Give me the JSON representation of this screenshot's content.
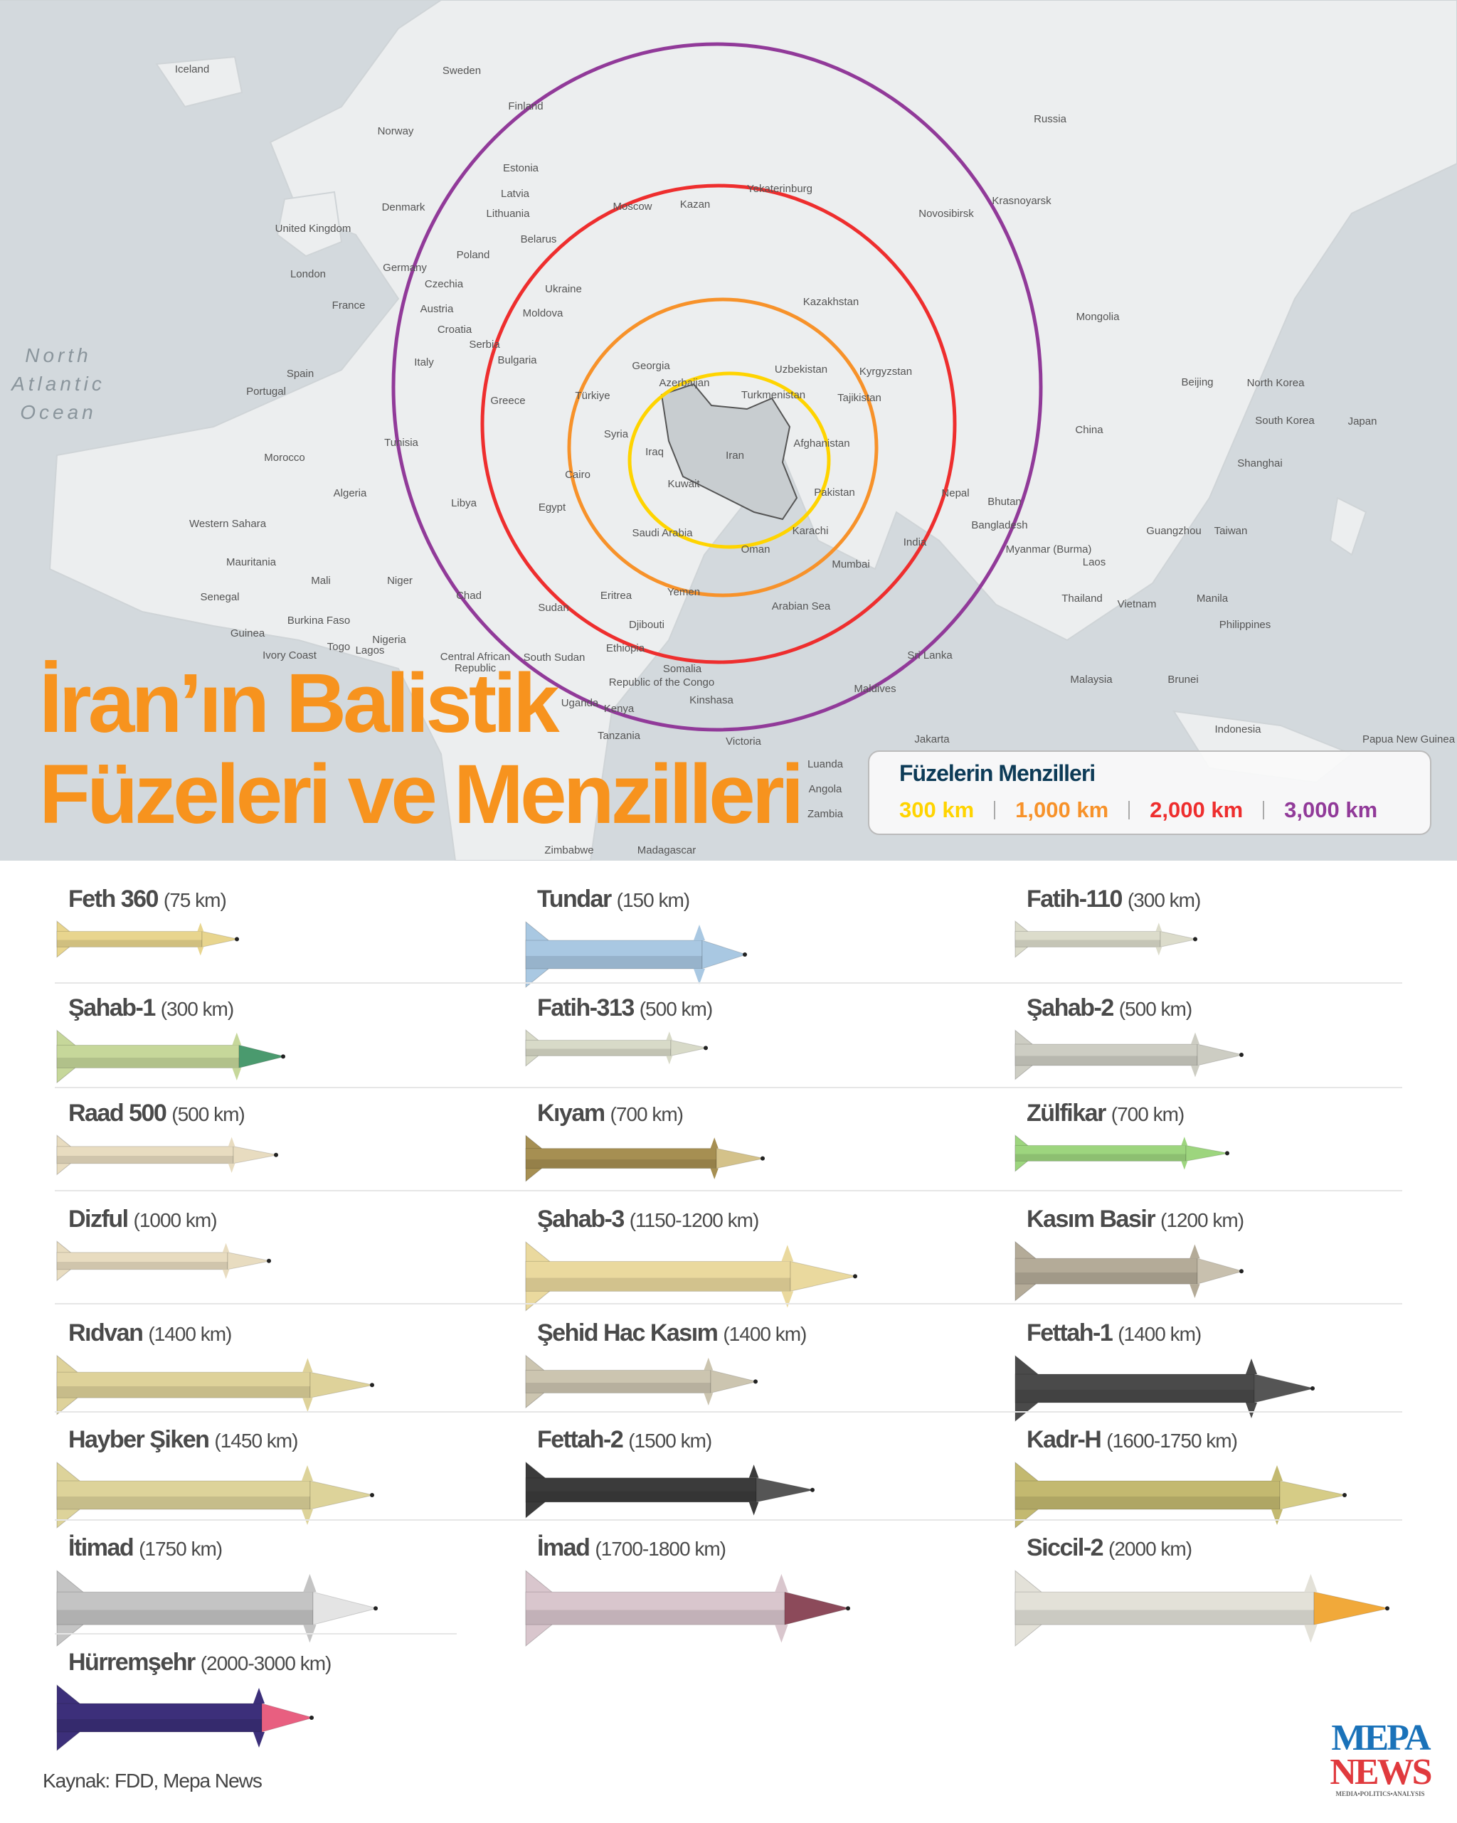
{
  "map": {
    "ocean_label": "North Atlantic Ocean",
    "labels": [
      "Iceland",
      "Sweden",
      "Finland",
      "Norway",
      "Russia",
      "Estonia",
      "Latvia",
      "Lithuania",
      "Denmark",
      "United Kingdom",
      "London",
      "Moscow",
      "Kazan",
      "Yekaterinburg",
      "Novosibirsk",
      "Krasnoyarsk",
      "Belarus",
      "Poland",
      "Germany",
      "Czechia",
      "Ukraine",
      "France",
      "Austria",
      "Moldova",
      "Croatia",
      "Serbia",
      "Kazakhstan",
      "Mongolia",
      "Spain",
      "Portugal",
      "Italy",
      "Bulgaria",
      "Georgia",
      "Azerbaijan",
      "Uzbekistan",
      "Kyrgyzstan",
      "Greece",
      "Türkiye",
      "Turkmenistan",
      "Tajikistan",
      "Beijing",
      "North Korea",
      "South Korea",
      "Japan",
      "Syria",
      "Iraq",
      "Iran",
      "Afghanistan",
      "China",
      "Tunisia",
      "Morocco",
      "Algeria",
      "Libya",
      "Egypt",
      "Cairo",
      "Kuwait",
      "Pakistan",
      "Nepal",
      "Bhutan",
      "Shanghai",
      "Western Sahara",
      "Saudi Arabia",
      "Karachi",
      "Bangladesh",
      "Guangzhou",
      "Taiwan",
      "Oman",
      "India",
      "Myanmar (Burma)",
      "Laos",
      "Mauritania",
      "Mali",
      "Niger",
      "Chad",
      "Mumbai",
      "Senegal",
      "Eritrea",
      "Yemen",
      "Arabian Sea",
      "Thailand",
      "Vietnam",
      "Manila",
      "Philippines",
      "Sudan",
      "Burkina Faso",
      "Guinea",
      "Djibouti",
      "Nigeria",
      "Ethiopia",
      "Ivory Coast",
      "Togo",
      "Central African Republic",
      "South Sudan",
      "Sri Lanka",
      "Somalia",
      "Malaysia",
      "Brunei",
      "Lagos",
      "Maldives",
      "Uganda",
      "Kenya",
      "Republic of the Congo",
      "Kinshasa",
      "Victoria",
      "Indonesia",
      "Tanzania",
      "Luanda",
      "Angola",
      "Zambia",
      "Zimbabwe",
      "Madagascar",
      "Jakarta",
      "Papua New Guinea"
    ]
  },
  "ranges": [
    {
      "km": 300,
      "label": "300 km",
      "color": "#ffd400"
    },
    {
      "km": 1000,
      "label": "1,000 km",
      "color": "#f7922a"
    },
    {
      "km": 2000,
      "label": "2,000 km",
      "color": "#ee2e2e"
    },
    {
      "km": 3000,
      "label": "3,000 km",
      "color": "#913a99"
    }
  ],
  "title": {
    "line1": "İran’ın Balistik",
    "line2": "Füzeleri ve Menzilleri",
    "color": "#f7931e"
  },
  "legend": {
    "title": "Füzelerin Menzilleri"
  },
  "missiles": [
    {
      "name": "Feth 360",
      "range": "(75 km)",
      "body": "#e8d58e",
      "nose": "#e8d58e"
    },
    {
      "name": "Tundar",
      "range": "(150 km)",
      "body": "#a9c8e2",
      "nose": "#a9c8e2"
    },
    {
      "name": "Fatih-110",
      "range": "(300 km)",
      "body": "#dcdccb",
      "nose": "#dcdccb"
    },
    {
      "name": "Şahab-1",
      "range": "(300 km)",
      "body": "#c6d79a",
      "nose": "#4a9a6e"
    },
    {
      "name": "Fatih-313",
      "range": "(500 km)",
      "body": "#d8dac8",
      "nose": "#d8dac8"
    },
    {
      "name": "Şahab-2",
      "range": "(500 km)",
      "body": "#cdcdc3",
      "nose": "#cdcdc3"
    },
    {
      "name": "Raad 500",
      "range": "(500 km)",
      "body": "#e8dcc0",
      "nose": "#e8dcc0"
    },
    {
      "name": "Kıyam",
      "range": "(700 km)",
      "body": "#a68f52",
      "nose": "#d4c28a"
    },
    {
      "name": "Zülfikar",
      "range": "(700 km)",
      "body": "#9dd57e",
      "nose": "#9dd57e"
    },
    {
      "name": "Dizful",
      "range": "(1000 km)",
      "body": "#e8dcc0",
      "nose": "#e8dcc0"
    },
    {
      "name": "Şahab-3",
      "range": "(1150-1200 km)",
      "body": "#ead99e",
      "nose": "#ead99e"
    },
    {
      "name": "Kasım Basir",
      "range": "(1200 km)",
      "body": "#b4ab98",
      "nose": "#c8c0ae"
    },
    {
      "name": "Rıdvan",
      "range": "(1400 km)",
      "body": "#ded29a",
      "nose": "#ded29a"
    },
    {
      "name": "Şehid Hac Kasım",
      "range": "(1400 km)",
      "body": "#ccc5b0",
      "nose": "#ccc5b0"
    },
    {
      "name": "Fettah-1",
      "range": "(1400 km)",
      "body": "#4a4a4a",
      "nose": "#555555"
    },
    {
      "name": "Hayber Şiken",
      "range": "(1450 km)",
      "body": "#ddd39a",
      "nose": "#ddd39a"
    },
    {
      "name": "Fettah-2",
      "range": "(1500 km)",
      "body": "#3b3b3b",
      "nose": "#555555"
    },
    {
      "name": "Kadr-H",
      "range": "(1600-1750 km)",
      "body": "#c3b970",
      "nose": "#d6cc86"
    },
    {
      "name": "İtimad",
      "range": "(1750 km)",
      "body": "#c4c4c4",
      "nose": "#e4e4e4"
    },
    {
      "name": "İmad",
      "range": "(1700-1800 km)",
      "body": "#d9c6cd",
      "nose": "#8c4a5a"
    },
    {
      "name": "Siccil-2",
      "range": "(2000 km)",
      "body": "#e3e1d8",
      "nose": "#f1a93a"
    },
    {
      "name": "Hürremşehr",
      "range": "(2000-3000 km)",
      "body": "#3c2f7a",
      "nose": "#e85f80"
    }
  ],
  "footer": {
    "source": "Kaynak: FDD, Mepa News"
  },
  "logo": {
    "line1": "MEPA",
    "line2": "NEWS",
    "tagline": "MEDIA•POLITICS•ANALYSIS"
  }
}
